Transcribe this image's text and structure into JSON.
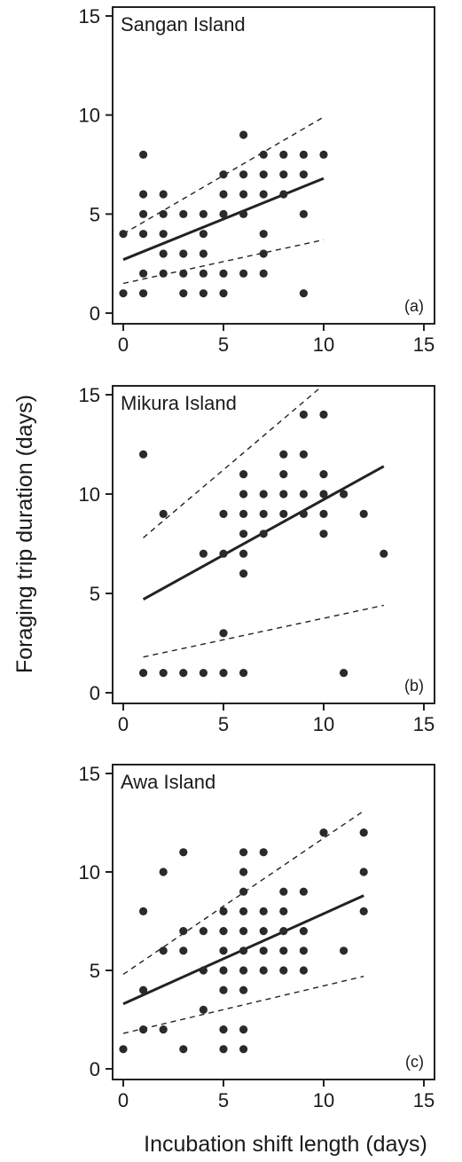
{
  "figure": {
    "ylabel": "Foraging trip duration (days)",
    "xlabel": "Incubation shift length (days)"
  },
  "chart_data": [
    {
      "type": "scatter",
      "title": "Sangan Island",
      "panel_label": "(a)",
      "xlim": [
        0,
        15
      ],
      "ylim": [
        0,
        15
      ],
      "xticks": [
        0,
        5,
        10,
        15
      ],
      "yticks": [
        0,
        5,
        10,
        15
      ],
      "grid": false,
      "points": [
        [
          0,
          1
        ],
        [
          0,
          4
        ],
        [
          1,
          1
        ],
        [
          1,
          2
        ],
        [
          1,
          4
        ],
        [
          1,
          5
        ],
        [
          1,
          6
        ],
        [
          1,
          8
        ],
        [
          2,
          2
        ],
        [
          2,
          3
        ],
        [
          2,
          4
        ],
        [
          2,
          5
        ],
        [
          2,
          6
        ],
        [
          3,
          1
        ],
        [
          3,
          2
        ],
        [
          3,
          3
        ],
        [
          3,
          5
        ],
        [
          4,
          1
        ],
        [
          4,
          2
        ],
        [
          4,
          3
        ],
        [
          4,
          4
        ],
        [
          4,
          5
        ],
        [
          5,
          1
        ],
        [
          5,
          2
        ],
        [
          5,
          5
        ],
        [
          5,
          6
        ],
        [
          5,
          7
        ],
        [
          6,
          2
        ],
        [
          6,
          5
        ],
        [
          6,
          6
        ],
        [
          6,
          7
        ],
        [
          6,
          9
        ],
        [
          7,
          2
        ],
        [
          7,
          3
        ],
        [
          7,
          4
        ],
        [
          7,
          6
        ],
        [
          7,
          7
        ],
        [
          7,
          8
        ],
        [
          8,
          6
        ],
        [
          8,
          7
        ],
        [
          8,
          8
        ],
        [
          9,
          1
        ],
        [
          9,
          5
        ],
        [
          9,
          7
        ],
        [
          9,
          8
        ],
        [
          10,
          8
        ]
      ],
      "fit": {
        "x": [
          0,
          10
        ],
        "y": [
          2.7,
          6.8
        ]
      },
      "upper": {
        "x": [
          0,
          10
        ],
        "y": [
          4.0,
          9.9
        ]
      },
      "lower": {
        "x": [
          0,
          10
        ],
        "y": [
          1.5,
          3.7
        ]
      }
    },
    {
      "type": "scatter",
      "title": "Mikura Island",
      "panel_label": "(b)",
      "xlim": [
        0,
        15
      ],
      "ylim": [
        0,
        15
      ],
      "xticks": [
        0,
        5,
        10,
        15
      ],
      "yticks": [
        0,
        5,
        10,
        15
      ],
      "grid": false,
      "points": [
        [
          1,
          1
        ],
        [
          1,
          12
        ],
        [
          2,
          1
        ],
        [
          2,
          9
        ],
        [
          3,
          1
        ],
        [
          4,
          1
        ],
        [
          4,
          7
        ],
        [
          5,
          1
        ],
        [
          5,
          3
        ],
        [
          5,
          7
        ],
        [
          5,
          9
        ],
        [
          6,
          1
        ],
        [
          6,
          6
        ],
        [
          6,
          7
        ],
        [
          6,
          8
        ],
        [
          6,
          9
        ],
        [
          6,
          10
        ],
        [
          6,
          11
        ],
        [
          7,
          8
        ],
        [
          7,
          9
        ],
        [
          7,
          10
        ],
        [
          8,
          9
        ],
        [
          8,
          10
        ],
        [
          8,
          11
        ],
        [
          8,
          12
        ],
        [
          9,
          9
        ],
        [
          9,
          10
        ],
        [
          9,
          12
        ],
        [
          9,
          14
        ],
        [
          10,
          8
        ],
        [
          10,
          9
        ],
        [
          10,
          10
        ],
        [
          10,
          11
        ],
        [
          10,
          14
        ],
        [
          11,
          1
        ],
        [
          11,
          10
        ],
        [
          12,
          9
        ],
        [
          13,
          7
        ]
      ],
      "fit": {
        "x": [
          1,
          13
        ],
        "y": [
          4.7,
          11.4
        ]
      },
      "upper": {
        "x": [
          1,
          10
        ],
        "y": [
          7.8,
          15.5
        ]
      },
      "lower": {
        "x": [
          1,
          13
        ],
        "y": [
          1.8,
          4.4
        ]
      }
    },
    {
      "type": "scatter",
      "title": "Awa Island",
      "panel_label": "(c)",
      "xlim": [
        0,
        15
      ],
      "ylim": [
        0,
        15
      ],
      "xticks": [
        0,
        5,
        10,
        15
      ],
      "yticks": [
        0,
        5,
        10,
        15
      ],
      "grid": false,
      "points": [
        [
          0,
          1
        ],
        [
          1,
          2
        ],
        [
          1,
          4
        ],
        [
          1,
          8
        ],
        [
          2,
          2
        ],
        [
          2,
          6
        ],
        [
          2,
          10
        ],
        [
          3,
          1
        ],
        [
          3,
          6
        ],
        [
          3,
          7
        ],
        [
          3,
          11
        ],
        [
          4,
          3
        ],
        [
          4,
          5
        ],
        [
          4,
          7
        ],
        [
          5,
          1
        ],
        [
          5,
          2
        ],
        [
          5,
          4
        ],
        [
          5,
          5
        ],
        [
          5,
          6
        ],
        [
          5,
          7
        ],
        [
          5,
          8
        ],
        [
          6,
          1
        ],
        [
          6,
          2
        ],
        [
          6,
          4
        ],
        [
          6,
          5
        ],
        [
          6,
          6
        ],
        [
          6,
          7
        ],
        [
          6,
          8
        ],
        [
          6,
          9
        ],
        [
          6,
          10
        ],
        [
          6,
          11
        ],
        [
          7,
          5
        ],
        [
          7,
          6
        ],
        [
          7,
          7
        ],
        [
          7,
          8
        ],
        [
          7,
          11
        ],
        [
          8,
          5
        ],
        [
          8,
          6
        ],
        [
          8,
          7
        ],
        [
          8,
          8
        ],
        [
          8,
          9
        ],
        [
          9,
          5
        ],
        [
          9,
          6
        ],
        [
          9,
          7
        ],
        [
          9,
          9
        ],
        [
          10,
          12
        ],
        [
          11,
          6
        ],
        [
          12,
          8
        ],
        [
          12,
          10
        ],
        [
          12,
          12
        ]
      ],
      "fit": {
        "x": [
          0,
          12
        ],
        "y": [
          3.3,
          8.8
        ]
      },
      "upper": {
        "x": [
          0,
          12
        ],
        "y": [
          4.8,
          13.1
        ]
      },
      "lower": {
        "x": [
          0,
          12
        ],
        "y": [
          1.8,
          4.7
        ]
      }
    }
  ]
}
